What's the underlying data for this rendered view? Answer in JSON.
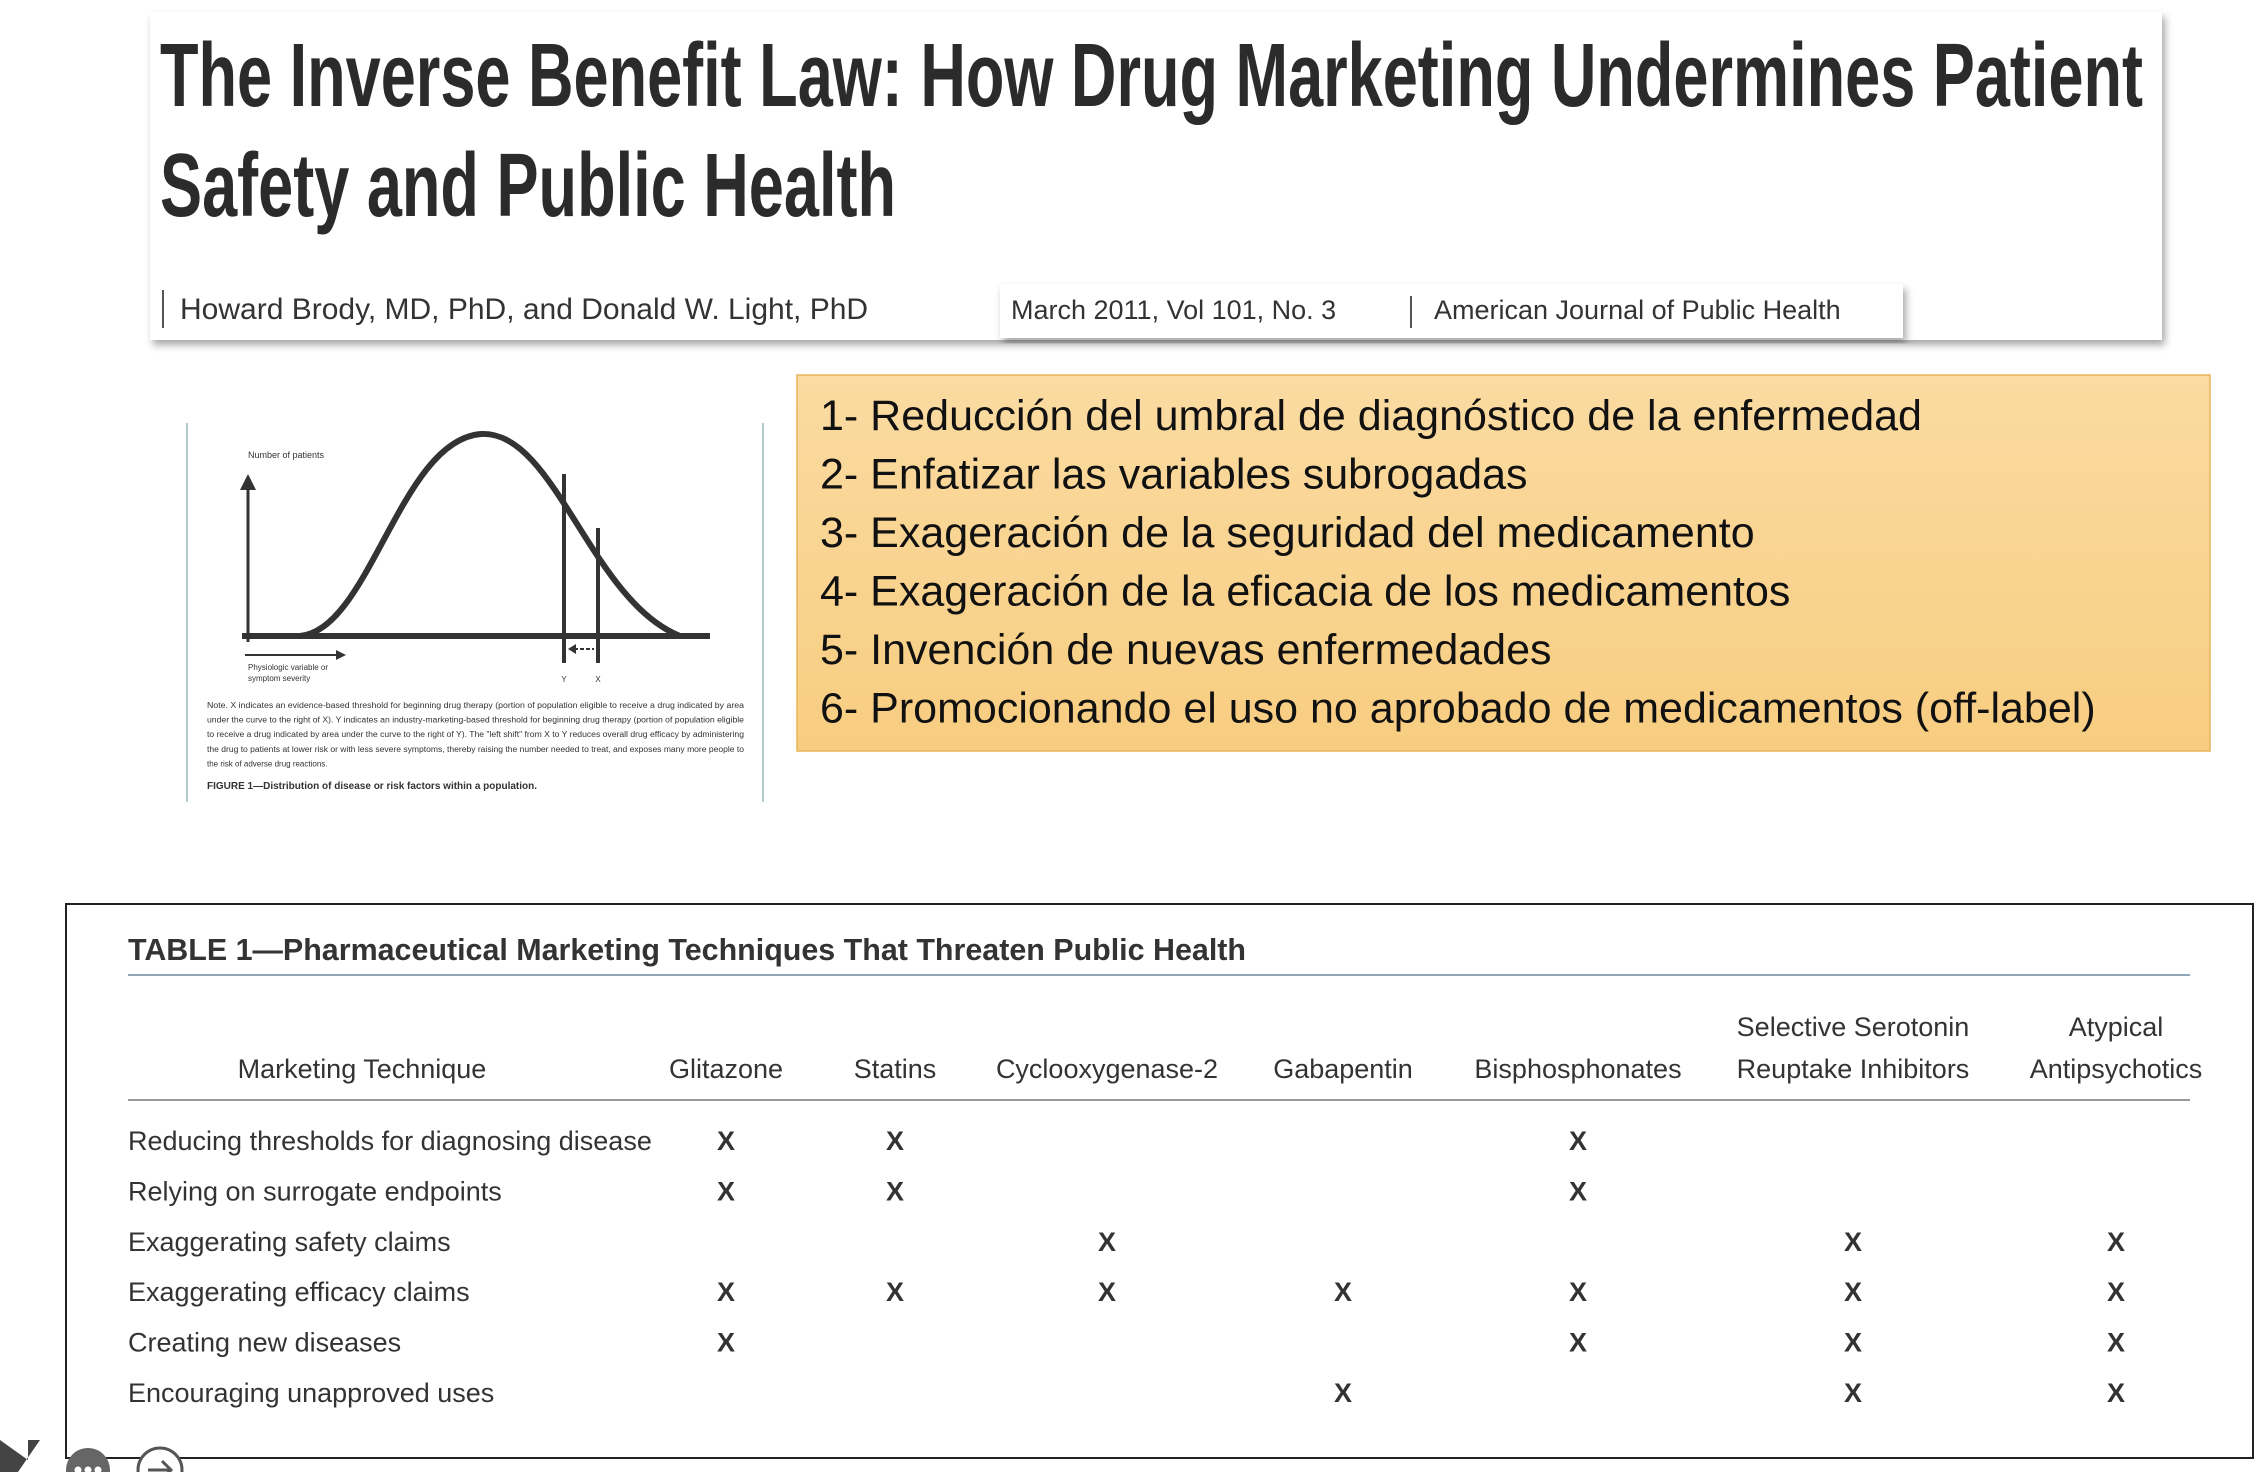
{
  "header": {
    "title_lines": [
      "The Inverse Benefit Law: How Drug Marketing Undermines Patient",
      "Safety and Public Health"
    ],
    "authors": "Howard Brody, MD, PhD, and Donald W. Light, PhD",
    "citation": [
      "March 2011, Vol 101, No. 3",
      "American Journal of Public Health"
    ]
  },
  "summary": {
    "items": [
      "1- Reducción del umbral de diagnóstico de la enfermedad",
      "2- Enfatizar las variables subrogadas",
      "3- Exageración de la seguridad del medicamento",
      "4- Exageración de la eficacia de los medicamentos",
      "5- Invención de nuevas enfermedades",
      "6- Promocionando el uso no aprobado de medicamentos (off-label)"
    ]
  },
  "figure": {
    "y_axis_label": "Number of patients",
    "x_axis_label": [
      "Physiologic variable or",
      "symptom severity"
    ],
    "marker_y": "Y",
    "marker_x": "X",
    "note_lines": [
      "Note. X indicates an evidence-based threshold for beginning drug therapy (portion of population eligible to receive a drug indicated by area",
      "under the curve to the right of X). Y indicates an industry-marketing-based threshold for beginning drug therapy (portion of population eligible",
      "to receive a drug indicated by area under the curve to the right of Y). The \"left shift\" from X to Y reduces overall drug efficacy by administering",
      "the drug to patients at lower risk or with less severe symptoms, thereby raising the number needed to treat, and exposes many more people to",
      "the risk of adverse drug reactions."
    ],
    "caption": "FIGURE 1—Distribution of disease or risk factors within a population."
  },
  "table": {
    "title": "TABLE 1—Pharmaceutical Marketing Techniques That Threaten Public Health",
    "columns": [
      [
        "Marketing Technique"
      ],
      [
        "Glitazone"
      ],
      [
        "Statins"
      ],
      [
        "Cyclooxygenase-2"
      ],
      [
        "Gabapentin"
      ],
      [
        "Bisphosphonates"
      ],
      [
        "Selective Serotonin",
        "Reuptake Inhibitors"
      ],
      [
        "Atypical",
        "Antipsychotics"
      ]
    ],
    "rows": [
      [
        "Reducing thresholds for diagnosing disease",
        "X",
        "X",
        null,
        null,
        "X",
        null,
        null
      ],
      [
        "Relying on surrogate endpoints",
        "X",
        "X",
        null,
        null,
        "X",
        null,
        null
      ],
      [
        "Exaggerating safety claims",
        null,
        null,
        "X",
        null,
        null,
        "X",
        "X"
      ],
      [
        "Exaggerating efficacy claims",
        "X",
        "X",
        "X",
        "X",
        "X",
        "X",
        "X"
      ],
      [
        "Creating new diseases",
        "X",
        null,
        null,
        null,
        "X",
        "X",
        "X"
      ],
      [
        "Encouraging unapproved uses",
        null,
        null,
        null,
        "X",
        null,
        "X",
        "X"
      ]
    ]
  }
}
